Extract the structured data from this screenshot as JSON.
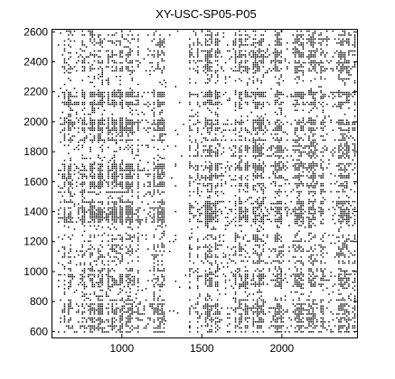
{
  "chart_data": {
    "type": "scatter",
    "title": "XY-USC-SP05-P05",
    "xlabel": "",
    "ylabel": "",
    "xlim": [
      560,
      2470
    ],
    "ylim": [
      560,
      2620
    ],
    "xticks": [
      1000,
      1500,
      2000
    ],
    "yticks": [
      600,
      800,
      1000,
      1200,
      1400,
      1600,
      1800,
      2000,
      2200,
      2400,
      2600
    ],
    "grid": false,
    "legend": "none",
    "marker_color": "#000000",
    "marker": "dot",
    "series": [
      {
        "values_description_blocks": [
          {
            "x": [
              600,
              1270
            ],
            "y": [
              2320,
              2610
            ],
            "density": 0.22
          },
          {
            "x": [
              600,
              1270
            ],
            "y": [
              2200,
              2320
            ],
            "density": 0.06
          },
          {
            "x": [
              600,
              1270
            ],
            "y": [
              1860,
              2200
            ],
            "density": 0.42
          },
          {
            "x": [
              600,
              1270
            ],
            "y": [
              1760,
              1860
            ],
            "density": 0.12
          },
          {
            "x": [
              600,
              1270
            ],
            "y": [
              1300,
              1760
            ],
            "density": 0.38
          },
          {
            "x": [
              600,
              1270
            ],
            "y": [
              1050,
              1300
            ],
            "density": 0.18
          },
          {
            "x": [
              600,
              1270
            ],
            "y": [
              880,
              1050
            ],
            "density": 0.26
          },
          {
            "x": [
              600,
              1270
            ],
            "y": [
              600,
              880
            ],
            "density": 0.3
          },
          {
            "x": [
              1270,
              1420
            ],
            "y": [
              600,
              2610
            ],
            "density": 0.02
          },
          {
            "x": [
              1420,
              2460
            ],
            "y": [
              2330,
              2610
            ],
            "density": 0.3
          },
          {
            "x": [
              1420,
              2460
            ],
            "y": [
              2200,
              2330
            ],
            "density": 0.1
          },
          {
            "x": [
              1420,
              2460
            ],
            "y": [
              1300,
              2200
            ],
            "density": 0.32
          },
          {
            "x": [
              1420,
              2460
            ],
            "y": [
              1000,
              1300
            ],
            "density": 0.2
          },
          {
            "x": [
              1420,
              2460
            ],
            "y": [
              600,
              1000
            ],
            "density": 0.28
          }
        ]
      }
    ]
  }
}
